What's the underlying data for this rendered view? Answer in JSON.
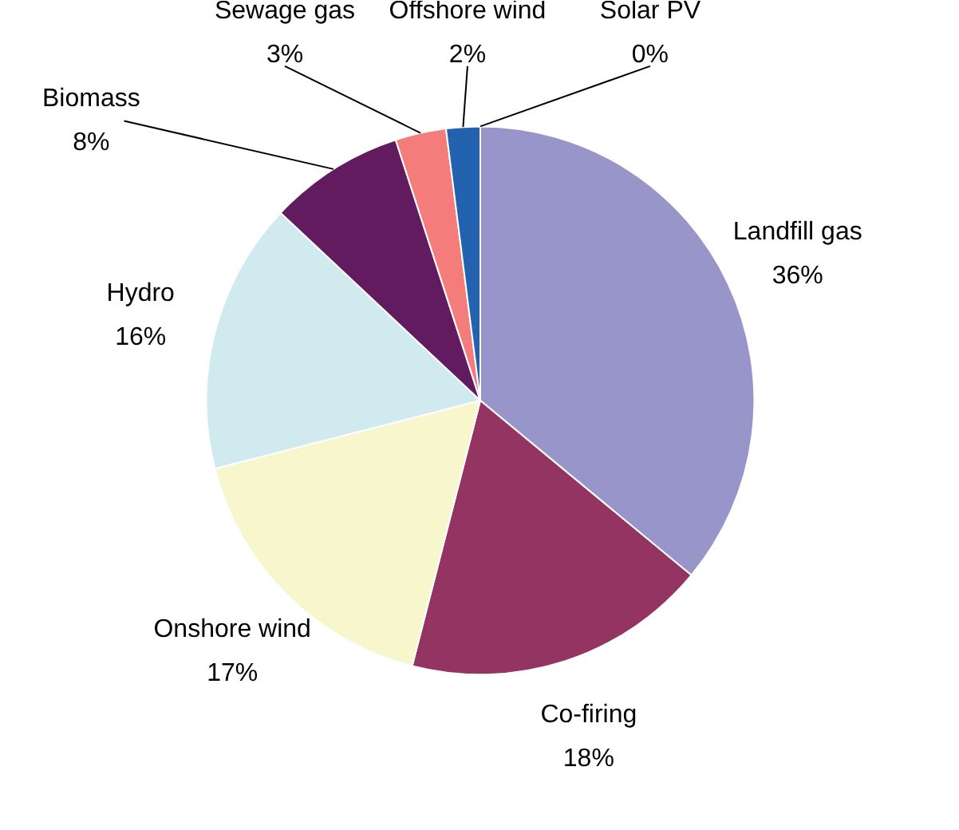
{
  "chart_data": {
    "type": "pie",
    "categories": [
      "Landfill gas",
      "Co-firing",
      "Onshore wind",
      "Hydro",
      "Biomass",
      "Sewage gas",
      "Offshore wind",
      "Solar PV"
    ],
    "values": [
      36,
      18,
      17,
      16,
      8,
      3,
      2,
      0
    ],
    "value_labels": [
      "36%",
      "18%",
      "17%",
      "16%",
      "8%",
      "3%",
      "2%",
      "0%"
    ],
    "colors": [
      "#9795c9",
      "#933462",
      "#f8f6cc",
      "#d0eaf0",
      "#621b5e",
      "#f47d7b",
      "#2262ae",
      "#8ab04a"
    ]
  }
}
